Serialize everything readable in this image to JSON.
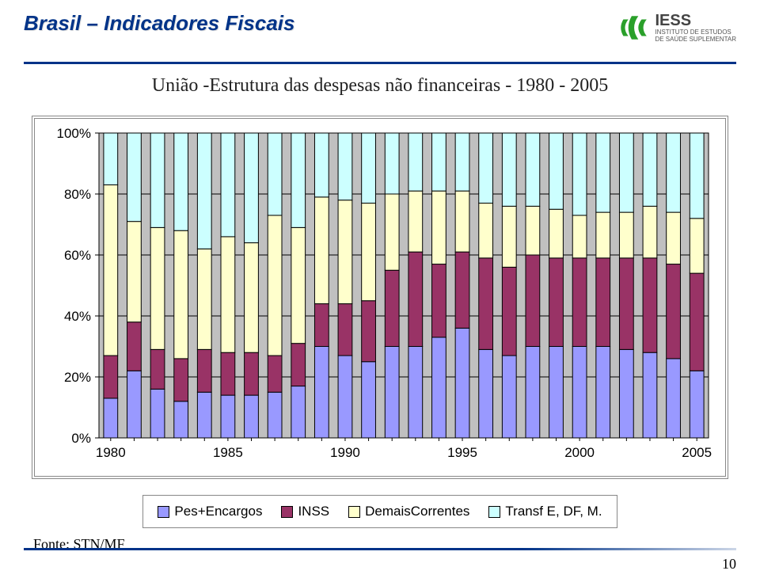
{
  "title": "Brasil – Indicadores Fiscais",
  "logo": {
    "acronym": "IESS",
    "line1": "INSTITUTO DE ESTUDOS",
    "line2": "DE SAÚDE SUPLEMENTAR"
  },
  "subtitle": "União -Estrutura das despesas não financeiras - 1980 - 2005",
  "source_label": "Fonte: STN/MF",
  "page_number": "10",
  "chart": {
    "type": "stacked-bar",
    "categories": [
      "1980",
      "1981",
      "1982",
      "1983",
      "1984",
      "1985",
      "1986",
      "1987",
      "1988",
      "1989",
      "1990",
      "1991",
      "1992",
      "1993",
      "1994",
      "1995",
      "1996",
      "1997",
      "1998",
      "1999",
      "2000",
      "2001",
      "2002",
      "2003",
      "2004",
      "2005"
    ],
    "x_tick_labels": [
      "1980",
      "1985",
      "1990",
      "1995",
      "2000",
      "2005"
    ],
    "x_tick_indices": [
      0,
      5,
      10,
      15,
      20,
      25
    ],
    "series": [
      {
        "key": "pes",
        "color": "#9999ff",
        "label": "Pes+Encargos"
      },
      {
        "key": "inss",
        "color": "#993366",
        "label": "INSS"
      },
      {
        "key": "demais",
        "color": "#ffffcc",
        "label": "DemaisCorrentes"
      },
      {
        "key": "transf",
        "color": "#ccffff",
        "label": "Transf E, DF, M."
      }
    ],
    "data": [
      {
        "pes": 13,
        "inss": 14,
        "demais": 56,
        "transf": 17
      },
      {
        "pes": 22,
        "inss": 16,
        "demais": 33,
        "transf": 29
      },
      {
        "pes": 16,
        "inss": 13,
        "demais": 40,
        "transf": 31
      },
      {
        "pes": 12,
        "inss": 14,
        "demais": 42,
        "transf": 32
      },
      {
        "pes": 15,
        "inss": 14,
        "demais": 33,
        "transf": 38
      },
      {
        "pes": 14,
        "inss": 14,
        "demais": 38,
        "transf": 34
      },
      {
        "pes": 14,
        "inss": 14,
        "demais": 36,
        "transf": 36
      },
      {
        "pes": 15,
        "inss": 12,
        "demais": 46,
        "transf": 27
      },
      {
        "pes": 17,
        "inss": 14,
        "demais": 38,
        "transf": 31
      },
      {
        "pes": 30,
        "inss": 14,
        "demais": 35,
        "transf": 21
      },
      {
        "pes": 27,
        "inss": 17,
        "demais": 34,
        "transf": 22
      },
      {
        "pes": 25,
        "inss": 20,
        "demais": 32,
        "transf": 23
      },
      {
        "pes": 30,
        "inss": 25,
        "demais": 25,
        "transf": 20
      },
      {
        "pes": 30,
        "inss": 31,
        "demais": 20,
        "transf": 19
      },
      {
        "pes": 33,
        "inss": 24,
        "demais": 24,
        "transf": 19
      },
      {
        "pes": 36,
        "inss": 25,
        "demais": 20,
        "transf": 19
      },
      {
        "pes": 29,
        "inss": 30,
        "demais": 18,
        "transf": 23
      },
      {
        "pes": 27,
        "inss": 29,
        "demais": 20,
        "transf": 24
      },
      {
        "pes": 30,
        "inss": 30,
        "demais": 16,
        "transf": 24
      },
      {
        "pes": 30,
        "inss": 29,
        "demais": 16,
        "transf": 25
      },
      {
        "pes": 30,
        "inss": 29,
        "demais": 14,
        "transf": 27
      },
      {
        "pes": 30,
        "inss": 29,
        "demais": 15,
        "transf": 26
      },
      {
        "pes": 29,
        "inss": 30,
        "demais": 15,
        "transf": 26
      },
      {
        "pes": 28,
        "inss": 31,
        "demais": 17,
        "transf": 24
      },
      {
        "pes": 26,
        "inss": 31,
        "demais": 17,
        "transf": 26
      },
      {
        "pes": 22,
        "inss": 32,
        "demais": 18,
        "transf": 28
      }
    ],
    "y_ticks": [
      0,
      20,
      40,
      60,
      80,
      100
    ],
    "y_suffix": "%",
    "plot_bg": "#c0c0c0",
    "axis_color": "#000000",
    "grid_color": "#000000",
    "bar_border": "#000000",
    "bar_width_ratio": 0.6,
    "tick_fontsize": 17
  }
}
